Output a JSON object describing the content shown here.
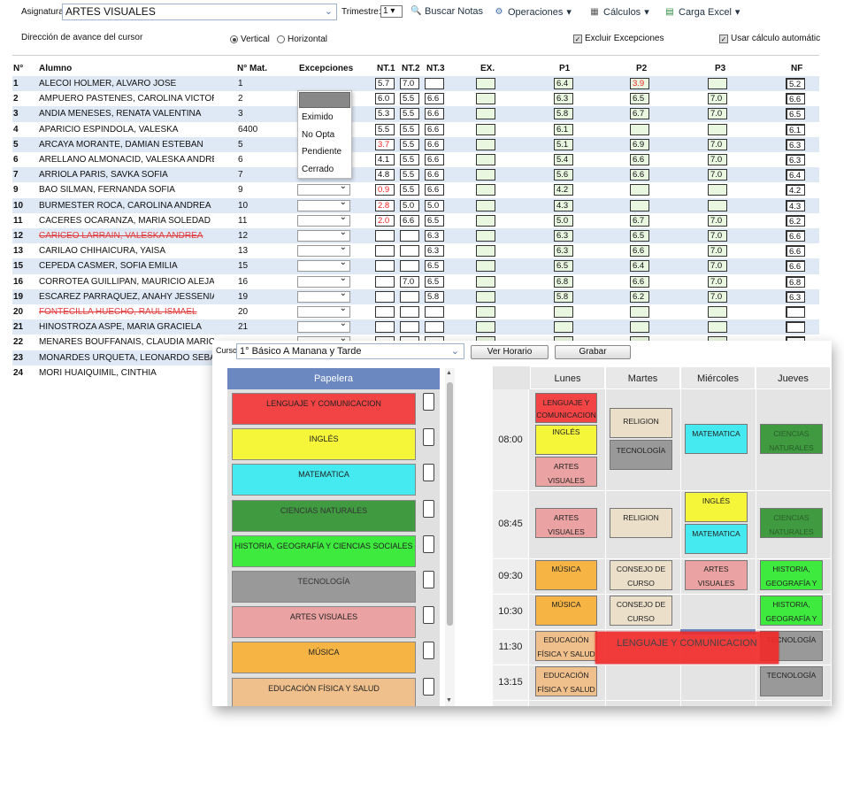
{
  "toolbar": {
    "asignatura_label": "Asignatura:",
    "asignatura_value": "ARTES VISUALES",
    "trimestre_label": "Trimestre:",
    "trimestre_value": "1",
    "buscar_label": "Buscar Notas",
    "operaciones_label": "Operaciones",
    "calculos_label": "Cálculos",
    "carga_label": "Carga Excel"
  },
  "options": {
    "direccion_label": "Dirección de avance del cursor",
    "vertical_label": "Vertical",
    "horizontal_label": "Horizontal",
    "direction_selected": "Vertical",
    "excluir_label": "Excluir Excepciones",
    "excluir_checked": true,
    "usar_label": "Usar cálculo automátic",
    "usar_checked": true
  },
  "table": {
    "headers": {
      "n": "N°",
      "alumno": "Alumno",
      "mat": "N° Mat.",
      "excepciones": "Excepciones",
      "nt1": "NT.1",
      "nt2": "NT.2",
      "nt3": "NT.3",
      "ex": "EX.",
      "p1": "P1",
      "p2": "P2",
      "p3": "P3",
      "nf": "NF"
    },
    "rows": [
      {
        "n": "1",
        "name": "ALECOI HOLMER, ALVARO JOSE",
        "mat": "1",
        "nt1": "5.7",
        "nt2": "7.0",
        "nt3": "",
        "p1": "6.4",
        "p2": "3.9",
        "p2red": true,
        "p3": "",
        "nf": "5.2"
      },
      {
        "n": "2",
        "name": "AMPUERO PASTENES, CAROLINA VICTORIA",
        "mat": "2",
        "nt1": "6.0",
        "nt2": "5.5",
        "nt3": "6.6",
        "p1": "6.3",
        "p2": "6.5",
        "p3": "7.0",
        "nf": "6.6"
      },
      {
        "n": "3",
        "name": "ANDIA MENESES, RENATA VALENTINA",
        "mat": "3",
        "nt1": "5.3",
        "nt2": "5.5",
        "nt3": "6.6",
        "p1": "5.8",
        "p2": "6.7",
        "p3": "7.0",
        "nf": "6.5"
      },
      {
        "n": "4",
        "name": "APARICIO ESPÍNDOLA, VALESKA",
        "mat": "6400",
        "nt1": "5.5",
        "nt2": "5.5",
        "nt3": "6.6",
        "p1": "6.1",
        "p2": "",
        "p3": "",
        "nf": "6.1"
      },
      {
        "n": "5",
        "name": "ARCAYA MORANTE, DAMIAN ESTEBAN",
        "mat": "5",
        "nt1": "3.7",
        "nt1red": true,
        "nt2": "5.5",
        "nt3": "6.6",
        "p1": "5.1",
        "p2": "6.9",
        "p3": "7.0",
        "nf": "6.3"
      },
      {
        "n": "6",
        "name": "ARELLANO ALMONACID, VALESKA ANDREA",
        "mat": "6",
        "nt1": "4.1",
        "nt2": "5.5",
        "nt3": "6.6",
        "p1": "5.4",
        "p2": "6.6",
        "p3": "7.0",
        "nf": "6.3"
      },
      {
        "n": "7",
        "name": "ARRIOLA PARIS, SAVKA SOFIA",
        "mat": "7",
        "nt1": "4.8",
        "nt2": "5.5",
        "nt3": "6.6",
        "p1": "5.6",
        "p2": "6.6",
        "p3": "7.0",
        "nf": "6.4"
      },
      {
        "n": "9",
        "name": "BAO SILMAN, FERNANDA SOFIA",
        "mat": "9",
        "nt1": "0.9",
        "nt1red": true,
        "nt2": "5.5",
        "nt3": "6.6",
        "p1": "4.2",
        "p2": "",
        "p3": "",
        "nf": "4.2"
      },
      {
        "n": "10",
        "name": "BURMESTER ROCA, CAROLINA ANDREA",
        "mat": "10",
        "nt1": "2.8",
        "nt1red": true,
        "nt2": "5.0",
        "nt3": "5.0",
        "p1": "4.3",
        "p2": "",
        "p3": "",
        "nf": "4.3"
      },
      {
        "n": "11",
        "name": "CÁCERES OCARANZA, MARIA SOLEDAD",
        "mat": "11",
        "nt1": "2.0",
        "nt1red": true,
        "nt2": "6.6",
        "nt3": "6.5",
        "p1": "5.0",
        "p2": "6.7",
        "p3": "7.0",
        "nf": "6.2"
      },
      {
        "n": "12",
        "name": "CARICEO LARRAIN, VALESKA ANDREA",
        "strike": true,
        "mat": "12",
        "nt1": "",
        "nt2": "",
        "nt3": "6.3",
        "p1": "6.3",
        "p2": "6.5",
        "p3": "7.0",
        "nf": "6.6"
      },
      {
        "n": "13",
        "name": "CARILAO CHIHAICURA, YAISA",
        "mat": "13",
        "nt1": "",
        "nt2": "",
        "nt3": "6.3",
        "p1": "6.3",
        "p2": "6.6",
        "p3": "7.0",
        "nf": "6.6"
      },
      {
        "n": "15",
        "name": "CEPEDA CASMER, SOFIA EMILIA",
        "mat": "15",
        "nt1": "",
        "nt2": "",
        "nt3": "6.5",
        "p1": "6.5",
        "p2": "6.4",
        "p3": "7.0",
        "nf": "6.6"
      },
      {
        "n": "16",
        "name": "CORROTEA GUILLIPAN, MAURICIO ALEJANDRO",
        "mat": "16",
        "nt1": "",
        "nt2": "7.0",
        "nt3": "6.5",
        "p1": "6.8",
        "p2": "6.6",
        "p3": "7.0",
        "nf": "6.8"
      },
      {
        "n": "19",
        "name": "ESCAREZ PARRAQUEZ, ANAHY JESSENIA",
        "mat": "19",
        "nt1": "",
        "nt2": "",
        "nt3": "5.8",
        "p1": "5.8",
        "p2": "6.2",
        "p3": "7.0",
        "nf": "6.3"
      },
      {
        "n": "20",
        "name": "FONTECILLA HUECHO, RAUL ISMAEL",
        "strike": true,
        "mat": "20",
        "nt1": "",
        "nt2": "",
        "nt3": "",
        "p1": "",
        "p2": "",
        "p3": "",
        "nf": ""
      },
      {
        "n": "21",
        "name": "HINOSTROZA ASPE, MARIA GRACIELA",
        "mat": "21",
        "nt1": "",
        "nt2": "",
        "nt3": "",
        "p1": "",
        "p2": "",
        "p3": "",
        "nf": ""
      },
      {
        "n": "22",
        "name": "MENARES BOUFFANAIS, CLAUDIA MARICEL",
        "mat": "",
        "nt1": "",
        "nt2": "",
        "nt3": "",
        "p1": "",
        "p2": "",
        "p3": "",
        "nf": ""
      },
      {
        "n": "23",
        "name": "MONARDES URQUETA, LEONARDO SEBAS",
        "mat": "",
        "nt1": "",
        "nt2": "",
        "nt3": "",
        "p1": "",
        "p2": "",
        "p3": "",
        "nf": ""
      },
      {
        "n": "24",
        "name": "MORI HUAIQUIMIL, CINTHIA",
        "mat": "",
        "nt1": "",
        "nt2": "",
        "nt3": "",
        "p1": "",
        "p2": "",
        "p3": "",
        "nf": ""
      }
    ]
  },
  "dropdown": {
    "options": [
      "Eximido",
      "No Opta",
      "Pendiente",
      "Cerrado"
    ]
  },
  "scheduler": {
    "curso_label": "Curso:",
    "curso_value": "1° Básico A Manana y Tarde",
    "ver_horario": "Ver Horario",
    "grabar": "Grabar",
    "papelera": "Papelera",
    "colors": {
      "lenguaje": "#f24444",
      "ingles": "#f5f53a",
      "matematica": "#44eaf0",
      "ciencias": "#3f9a40",
      "historia": "#3eea3e",
      "tecnologia": "#999999",
      "artes": "#eba2a2",
      "musica": "#f5b443",
      "edfisica": "#f0c08c",
      "religion": "#ebdfc9",
      "consejo": "#ebdfc9"
    },
    "subjects": [
      {
        "label": "LENGUAJE Y COMUNICACION",
        "color": "lenguaje"
      },
      {
        "label": "INGLÉS",
        "color": "ingles"
      },
      {
        "label": "MATEMATICA",
        "color": "matematica"
      },
      {
        "label": "CIENCIAS NATURALES",
        "color": "ciencias"
      },
      {
        "label": "HISTORIA, GEOGRAFÍA Y CIENCIAS SOCIALES",
        "color": "historia"
      },
      {
        "label": "TECNOLOGÍA",
        "color": "tecnologia"
      },
      {
        "label": "ARTES VISUALES",
        "color": "artes"
      },
      {
        "label": "MÚSICA",
        "color": "musica"
      },
      {
        "label": "EDUCACIÓN FÍSICA Y SALUD",
        "color": "edfisica"
      }
    ],
    "days": [
      "Lunes",
      "Martes",
      "Miércoles",
      "Jueves"
    ],
    "times": [
      "08:00",
      "08:45",
      "09:30",
      "10:30",
      "11:30",
      "13:15"
    ],
    "drag_label": "LENGUAJE Y COMUNICACION",
    "blocks": {
      "lun1a": "LENGUAJE Y COMUNICACION",
      "lun1b": "INGLÉS",
      "lun1c": "ARTES VISUALES",
      "mar1a": "RELIGION",
      "mar1b": "TECNOLOGÍA",
      "mie1": "MATEMATICA",
      "jue1": "CIENCIAS NATURALES",
      "lun2": "ARTES VISUALES",
      "mar2": "RELIGION",
      "mie2a": "INGLÉS",
      "mie2b": "MATEMATICA",
      "jue2": "CIENCIAS NATURALES",
      "lun3": "MÚSICA",
      "mar3": "CONSEJO DE CURSO",
      "mie3": "ARTES VISUALES",
      "jue3": "HISTORIA, GEOGRAFÍA Y",
      "lun4": "MÚSICA",
      "mar4": "CONSEJO DE CURSO",
      "jue4": "HISTORIA, GEOGRAFÍA Y",
      "lun5": "EDUCACIÓN FÍSICA Y SALUD",
      "jue5": "TECNOLOGÍA",
      "lun6": "EDUCACIÓN FÍSICA Y SALUD",
      "jue6": "TECNOLOGÍA"
    }
  }
}
